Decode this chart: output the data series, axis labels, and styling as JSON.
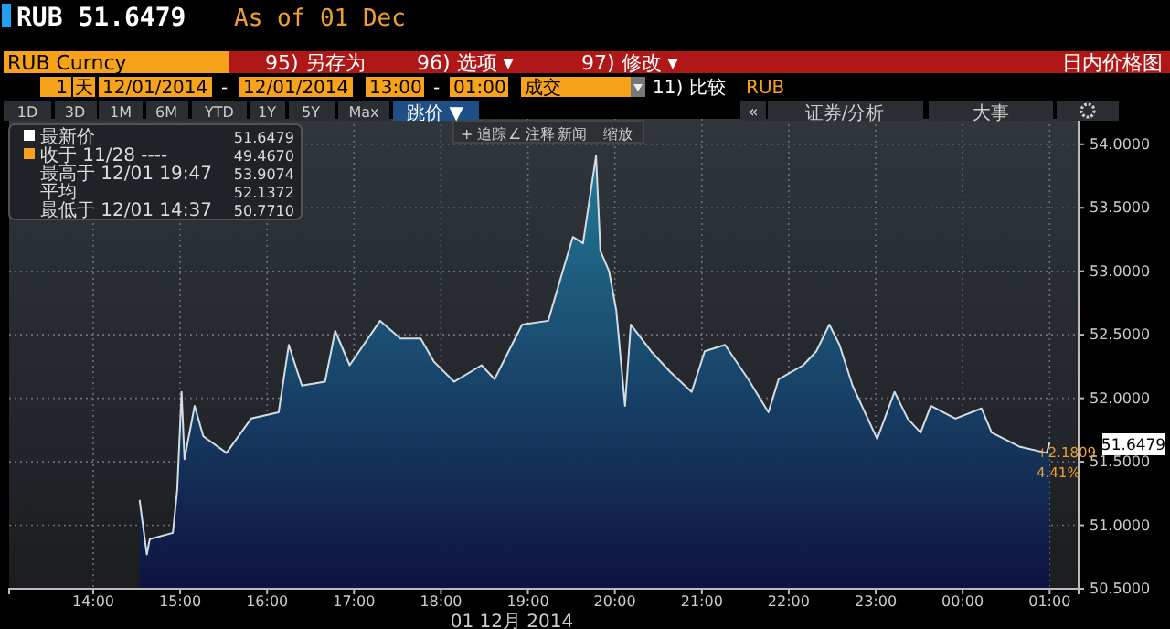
{
  "chart_data": {
    "type": "area",
    "title": "RUB 51.6479",
    "subtitle": "As of 01 Dec",
    "xlabel": "01 12月 2014",
    "x": [
      "2014-12-01T14:32",
      "2014-12-01T14:37",
      "2014-12-01T14:39",
      "2014-12-01T14:55",
      "2014-12-01T14:58",
      "2014-12-01T15:01",
      "2014-12-01T15:03",
      "2014-12-01T15:10",
      "2014-12-01T15:16",
      "2014-12-01T15:32",
      "2014-12-01T15:49",
      "2014-12-01T16:08",
      "2014-12-01T16:15",
      "2014-12-01T16:24",
      "2014-12-01T16:40",
      "2014-12-01T16:47",
      "2014-12-01T16:57",
      "2014-12-01T17:18",
      "2014-12-01T17:32",
      "2014-12-01T17:46",
      "2014-12-01T17:55",
      "2014-12-01T18:09",
      "2014-12-01T18:28",
      "2014-12-01T18:37",
      "2014-12-01T18:56",
      "2014-12-01T19:14",
      "2014-12-01T19:24",
      "2014-12-01T19:31",
      "2014-12-01T19:38",
      "2014-12-01T19:47",
      "2014-12-01T19:50",
      "2014-12-01T19:56",
      "2014-12-01T20:01",
      "2014-12-01T20:07",
      "2014-12-01T20:11",
      "2014-12-01T20:25",
      "2014-12-01T20:38",
      "2014-12-01T20:53",
      "2014-12-01T21:02",
      "2014-12-01T21:16",
      "2014-12-01T21:32",
      "2014-12-01T21:46",
      "2014-12-01T21:53",
      "2014-12-01T22:10",
      "2014-12-01T22:19",
      "2014-12-01T22:28",
      "2014-12-01T22:35",
      "2014-12-01T22:44",
      "2014-12-01T23:01",
      "2014-12-01T23:13",
      "2014-12-01T23:22",
      "2014-12-01T23:31",
      "2014-12-01T23:38",
      "2014-12-01T23:55",
      "2014-12-02T00:13",
      "2014-12-02T00:20",
      "2014-12-02T00:39",
      "2014-12-02T00:58",
      "2014-12-02T01:00"
    ],
    "series": [
      {
        "color": "#237a96",
        "values": [
          51.2,
          50.77,
          50.89,
          50.94,
          51.28,
          52.05,
          51.52,
          51.94,
          51.7,
          51.57,
          51.84,
          51.89,
          52.42,
          52.1,
          52.13,
          52.53,
          52.26,
          52.61,
          52.47,
          52.47,
          52.29,
          52.13,
          52.26,
          52.15,
          52.58,
          52.61,
          53.0,
          53.27,
          53.22,
          53.91,
          53.16,
          53.0,
          52.69,
          51.94,
          52.58,
          52.37,
          52.21,
          52.05,
          52.37,
          52.42,
          52.15,
          51.89,
          52.15,
          52.26,
          52.37,
          52.58,
          52.42,
          52.1,
          51.68,
          52.05,
          51.84,
          51.73,
          51.94,
          51.84,
          51.92,
          51.73,
          51.62,
          51.57,
          51.65
        ]
      }
    ],
    "xlim": [
      "2014-12-01T13:02",
      "2014-12-02T01:20"
    ],
    "ylim": [
      50.5,
      54.2
    ],
    "xticks": [
      {
        "value": "2014-12-01T14:00",
        "label": "14:00"
      },
      {
        "value": "2014-12-01T15:00",
        "label": "15:00"
      },
      {
        "value": "2014-12-01T16:00",
        "label": "16:00"
      },
      {
        "value": "2014-12-01T17:00",
        "label": "17:00"
      },
      {
        "value": "2014-12-01T18:00",
        "label": "18:00"
      },
      {
        "value": "2014-12-01T19:00",
        "label": "19:00"
      },
      {
        "value": "2014-12-01T20:00",
        "label": "20:00"
      },
      {
        "value": "2014-12-01T21:00",
        "label": "21:00"
      },
      {
        "value": "2014-12-01T22:00",
        "label": "22:00"
      },
      {
        "value": "2014-12-01T23:00",
        "label": "23:00"
      },
      {
        "value": "2014-12-02T00:00",
        "label": "00:00"
      },
      {
        "value": "2014-12-02T01:00",
        "label": "01:00"
      }
    ],
    "yticks": [
      {
        "value": 50.5,
        "label": "50.5000"
      },
      {
        "value": 51,
        "label": "51.0000"
      },
      {
        "value": 51.5,
        "label": "51.5000"
      },
      {
        "value": 52,
        "label": "52.0000"
      },
      {
        "value": 52.5,
        "label": "52.5000"
      },
      {
        "value": 53,
        "label": "53.0000"
      },
      {
        "value": 53.5,
        "label": "53.5000"
      },
      {
        "value": 54,
        "label": "54.0000"
      }
    ],
    "grid": true,
    "annotations": [
      "RUB Curncy",
      "95) 另存为",
      "96) 选项 ▾",
      "97) 修改 ▾",
      "日内价格图",
      "1",
      "天",
      "12/01/2014",
      "-",
      "12/01/2014",
      "13:00",
      "-",
      "01:00",
      "成交",
      "11) 比较",
      "RUB",
      "1D",
      "3D",
      "1M",
      "6M",
      "YTD",
      "1Y",
      "5Y",
      "Max",
      "跳价 ▼",
      "«",
      "证券/分析",
      "大事",
      "+ 追踪",
      "∠ 注释",
      "新闻",
      "缩放",
      "最新价",
      "51.6479",
      "收于 11/28 ----",
      "49.4670",
      "最高于 12/01 19:47",
      "53.9074",
      "平均",
      "52.1372",
      "最低于 12/01 14:37",
      "50.7710",
      "+2.1809",
      "4.41%",
      "51.6479"
    ]
  }
}
